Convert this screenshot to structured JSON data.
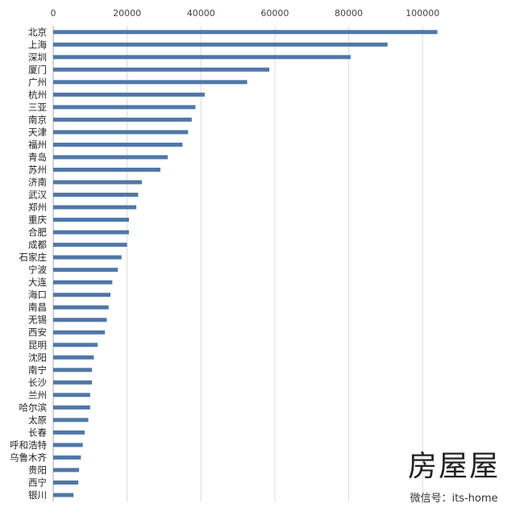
{
  "chart_data": {
    "type": "bar",
    "orientation": "horizontal",
    "title": "",
    "xlabel": "",
    "ylabel": "",
    "xlim": [
      0,
      110000
    ],
    "x_ticks": [
      0,
      20000,
      40000,
      60000,
      80000,
      100000
    ],
    "x_tick_labels": [
      "0",
      "20000",
      "40000",
      "60000",
      "80000",
      "100000"
    ],
    "x_axis_position": "top",
    "grid": "vertical",
    "bar_color": "#4f77a8",
    "categories": [
      "北京",
      "上海",
      "深圳",
      "厦门",
      "广州",
      "杭州",
      "三亚",
      "南京",
      "天津",
      "福州",
      "青岛",
      "苏州",
      "济南",
      "武汉",
      "郑州",
      "重庆",
      "合肥",
      "成都",
      "石家庄",
      "宁波",
      "大连",
      "海口",
      "南昌",
      "无锡",
      "西安",
      "昆明",
      "沈阳",
      "南宁",
      "长沙",
      "兰州",
      "哈尔滨",
      "太原",
      "长春",
      "呼和浩特",
      "乌鲁木齐",
      "贵阳",
      "西宁",
      "银川"
    ],
    "values": [
      104000,
      90500,
      80500,
      58500,
      52500,
      41000,
      38500,
      37500,
      36500,
      35000,
      31000,
      29000,
      24000,
      23000,
      22500,
      20500,
      20500,
      20000,
      18500,
      17500,
      16000,
      15500,
      15000,
      14500,
      14000,
      12000,
      11000,
      10500,
      10500,
      10000,
      10000,
      9500,
      8500,
      8000,
      7500,
      7000,
      6800,
      5500
    ]
  },
  "watermark": {
    "title": "房屋屋",
    "subtitle": "微信号：its-home"
  }
}
